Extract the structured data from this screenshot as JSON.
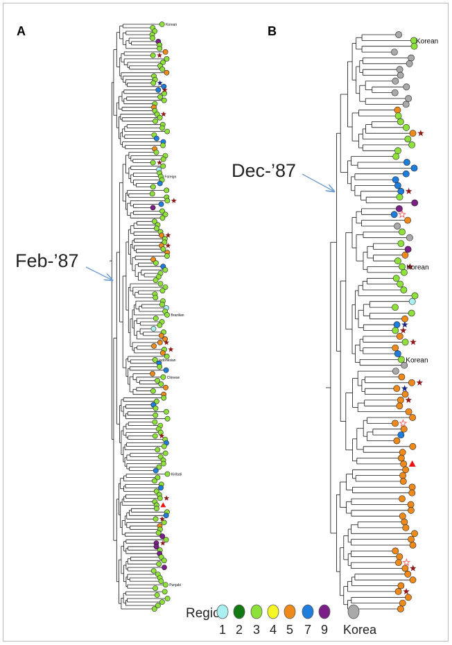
{
  "panels": {
    "a": {
      "letter": "A",
      "root_date": "Feb-’87",
      "tip_labels": [
        "Korean",
        "Foreign",
        "Brazilian",
        "Indonesian",
        "Chinese",
        "Kiribati",
        "Punjabi"
      ]
    },
    "b": {
      "letter": "B",
      "root_date": "Dec-’87",
      "tip_labels": [
        "Korean",
        "Korean",
        "Korean"
      ]
    }
  },
  "legend": {
    "title": "Region",
    "items": [
      {
        "label": "1",
        "color": "#aaf0f0"
      },
      {
        "label": "2",
        "color": "#137a13"
      },
      {
        "label": "3",
        "color": "#8ee03b"
      },
      {
        "label": "4",
        "color": "#f6f526"
      },
      {
        "label": "5",
        "color": "#ee8a1c"
      },
      {
        "label": "7",
        "color": "#1f7ddc"
      },
      {
        "label": "9",
        "color": "#7a1f86"
      },
      {
        "label": "Korea",
        "color": "#a9a9a9"
      }
    ]
  },
  "markers": {
    "star_color": "#8b1a1a",
    "star_blue_color": "#1a237e",
    "open_star_color": "#ff5a5a",
    "triangle_color": "#ee1111"
  }
}
